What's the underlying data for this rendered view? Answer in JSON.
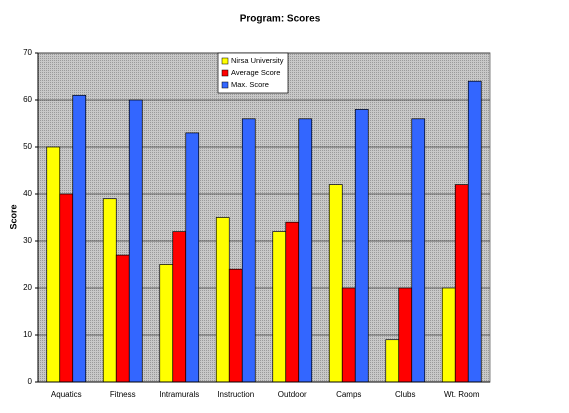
{
  "chart_data": {
    "type": "bar",
    "title": "Program: Scores",
    "ylabel": "Score",
    "categories": [
      "Aquatics",
      "Fitness",
      "Intramurals",
      "Instruction",
      "Outdoor",
      "Camps",
      "Clubs",
      "Wt. Room"
    ],
    "series": [
      {
        "name": "Nirsa University",
        "color": "#ffff00",
        "values": [
          50,
          39,
          25,
          35,
          32,
          42,
          9,
          20
        ]
      },
      {
        "name": "Average Score",
        "color": "#ff0000",
        "values": [
          40,
          27,
          32,
          24,
          34,
          20,
          20,
          42
        ]
      },
      {
        "name": "Max. Score",
        "color": "#3366ff",
        "values": [
          61,
          60,
          53,
          56,
          56,
          58,
          56,
          64
        ]
      }
    ],
    "ylim": [
      0,
      70
    ],
    "yticks": [
      0,
      10,
      20,
      30,
      40,
      50,
      60,
      70
    ],
    "grid": true,
    "legend": "top"
  }
}
